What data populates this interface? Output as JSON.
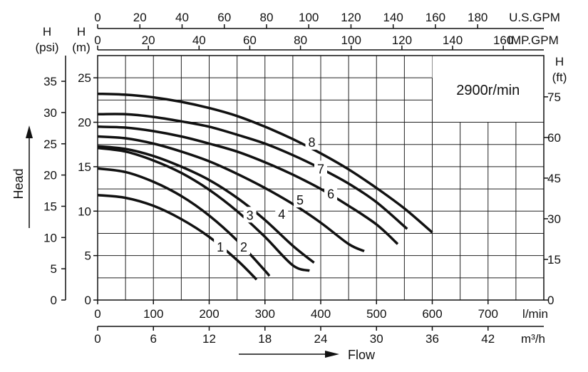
{
  "chart_data": {
    "type": "line",
    "speed_label": "2900r/min",
    "head_label": "Head",
    "flow_label": "Flow",
    "axes": {
      "flow_lmin": {
        "label": "l/min",
        "range": [
          0,
          800
        ],
        "ticks": [
          "0",
          "100",
          "200",
          "300",
          "400",
          "500",
          "600",
          "700"
        ]
      },
      "flow_m3h": {
        "label": "m³/h",
        "ticks": [
          "0",
          "6",
          "12",
          "18",
          "24",
          "30",
          "36",
          "42"
        ]
      },
      "usgpm": {
        "label": "U.S.GPM",
        "ticks": [
          "0",
          "20",
          "40",
          "60",
          "80",
          "100",
          "120",
          "140",
          "160",
          "180"
        ]
      },
      "impgpm": {
        "label": "IMP.GPM",
        "ticks": [
          "0",
          "20",
          "40",
          "60",
          "80",
          "100",
          "120",
          "140",
          "160"
        ]
      },
      "head_m": {
        "label_h": "H",
        "label_unit": "(m)",
        "range": [
          0,
          27.5
        ],
        "ticks": [
          "0",
          "5",
          "10",
          "15",
          "20",
          "25"
        ]
      },
      "head_psi": {
        "label_h": "H",
        "label_unit": "(psi)",
        "ticks": [
          "0",
          "5",
          "10",
          "15",
          "20",
          "25",
          "30",
          "35"
        ]
      },
      "head_ft": {
        "label_h": "H",
        "label_unit": "(ft)",
        "ticks": [
          "0",
          "15",
          "30",
          "45",
          "60",
          "75"
        ]
      }
    },
    "series": [
      {
        "name": "1",
        "points": [
          [
            0,
            11.8
          ],
          [
            50,
            11.5
          ],
          [
            100,
            10.6
          ],
          [
            150,
            9.1
          ],
          [
            200,
            7.1
          ],
          [
            250,
            4.5
          ],
          [
            285,
            2.3
          ]
        ],
        "label_at": [
          220,
          6.0
        ]
      },
      {
        "name": "2",
        "points": [
          [
            0,
            14.8
          ],
          [
            50,
            14.4
          ],
          [
            100,
            13.3
          ],
          [
            150,
            11.7
          ],
          [
            200,
            9.5
          ],
          [
            250,
            6.7
          ],
          [
            300,
            3.3
          ],
          [
            308,
            2.7
          ]
        ],
        "label_at": [
          262,
          6.0
        ]
      },
      {
        "name": "3",
        "points": [
          [
            0,
            17.1
          ],
          [
            50,
            16.7
          ],
          [
            100,
            15.7
          ],
          [
            150,
            14.3
          ],
          [
            200,
            12.4
          ],
          [
            250,
            10.0
          ],
          [
            300,
            7.1
          ],
          [
            350,
            3.9
          ],
          [
            380,
            3.3
          ]
        ],
        "label_at": [
          273,
          9.6
        ]
      },
      {
        "name": "4",
        "points": [
          [
            0,
            17.3
          ],
          [
            50,
            17.0
          ],
          [
            100,
            16.2
          ],
          [
            150,
            15.0
          ],
          [
            200,
            13.5
          ],
          [
            250,
            11.5
          ],
          [
            300,
            9.0
          ],
          [
            350,
            6.1
          ],
          [
            388,
            4.2
          ]
        ],
        "label_at": [
          330,
          9.7
        ]
      },
      {
        "name": "5",
        "points": [
          [
            0,
            18.4
          ],
          [
            50,
            18.2
          ],
          [
            100,
            17.6
          ],
          [
            150,
            16.7
          ],
          [
            200,
            15.6
          ],
          [
            250,
            14.2
          ],
          [
            300,
            12.6
          ],
          [
            350,
            10.8
          ],
          [
            400,
            8.7
          ],
          [
            450,
            6.3
          ],
          [
            478,
            5.5
          ]
        ],
        "label_at": [
          363,
          11.3
        ]
      },
      {
        "name": "6",
        "points": [
          [
            0,
            19.5
          ],
          [
            50,
            19.4
          ],
          [
            100,
            19.0
          ],
          [
            150,
            18.4
          ],
          [
            200,
            17.6
          ],
          [
            250,
            16.7
          ],
          [
            300,
            15.5
          ],
          [
            350,
            14.1
          ],
          [
            400,
            12.5
          ],
          [
            450,
            10.6
          ],
          [
            500,
            8.5
          ],
          [
            538,
            6.3
          ]
        ],
        "label_at": [
          418,
          12.0
        ]
      },
      {
        "name": "7",
        "points": [
          [
            0,
            20.9
          ],
          [
            50,
            20.9
          ],
          [
            100,
            20.6
          ],
          [
            150,
            20.1
          ],
          [
            200,
            19.5
          ],
          [
            250,
            18.6
          ],
          [
            300,
            17.6
          ],
          [
            350,
            16.3
          ],
          [
            400,
            14.8
          ],
          [
            450,
            13.1
          ],
          [
            500,
            11.0
          ],
          [
            555,
            8.0
          ]
        ],
        "label_at": [
          400,
          14.8
        ]
      },
      {
        "name": "8",
        "points": [
          [
            0,
            23.2
          ],
          [
            50,
            23.1
          ],
          [
            100,
            22.8
          ],
          [
            150,
            22.3
          ],
          [
            200,
            21.6
          ],
          [
            250,
            20.7
          ],
          [
            300,
            19.5
          ],
          [
            350,
            18.1
          ],
          [
            400,
            16.5
          ],
          [
            450,
            14.7
          ],
          [
            500,
            12.6
          ],
          [
            550,
            10.3
          ],
          [
            600,
            7.6
          ]
        ],
        "label_at": [
          384,
          17.8
        ]
      }
    ]
  }
}
